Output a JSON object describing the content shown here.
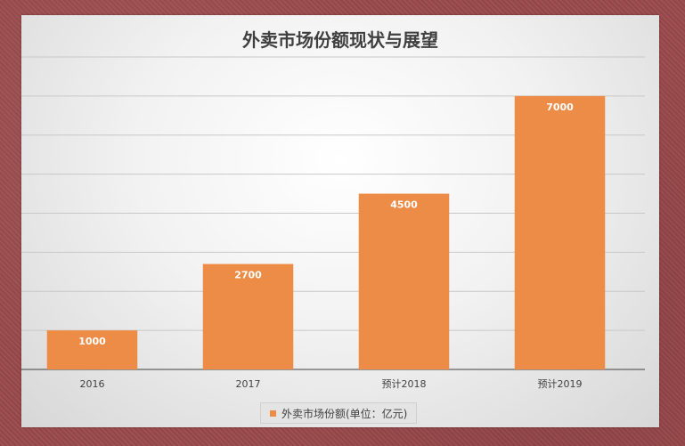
{
  "chart_data": {
    "type": "bar",
    "title": "外卖市场份额现状与展望",
    "categories": [
      "2016",
      "2017",
      "预计2018",
      "预计2019"
    ],
    "series": [
      {
        "name": "外卖市场份额(单位：亿元)",
        "values": [
          1000,
          2700,
          4500,
          7000
        ],
        "color": "#ec8c47"
      }
    ],
    "ylim": [
      0,
      8000
    ],
    "y_gridline_step": 1000,
    "show_y_tick_labels": false,
    "grid": true,
    "data_labels": true,
    "legend_position": "bottom"
  }
}
